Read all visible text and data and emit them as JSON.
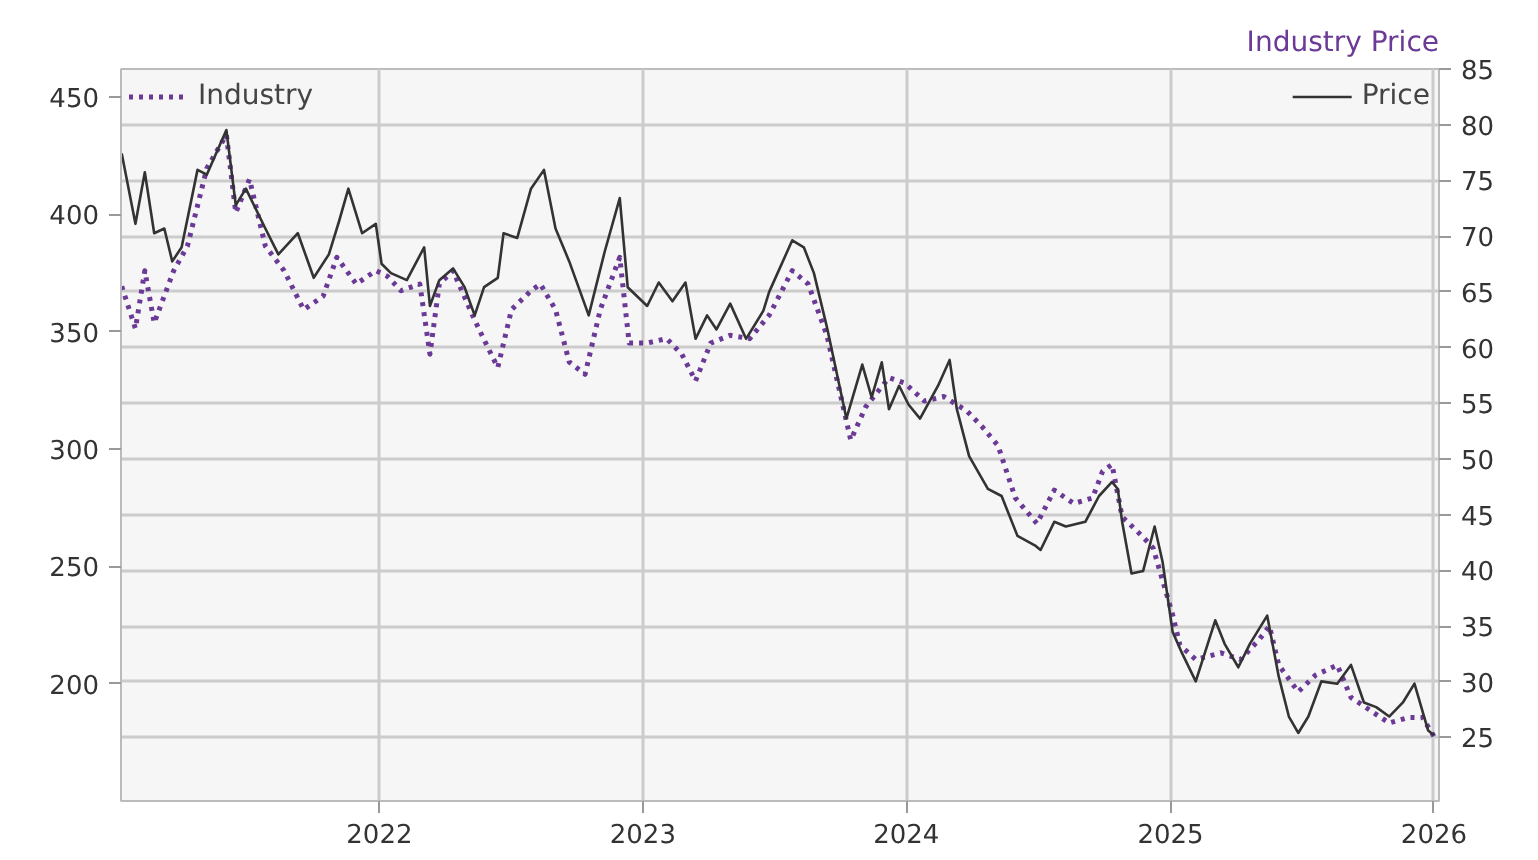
{
  "chart_data": {
    "type": "line",
    "y2label": "Industry Price",
    "legend": "top",
    "grid": true,
    "xlim": [
      "2021-01-08",
      "2026-01-08"
    ],
    "xticks": [
      {
        "value": "2022-01-01",
        "label": "2022"
      },
      {
        "value": "2023-01-01",
        "label": "2023"
      },
      {
        "value": "2024-01-01",
        "label": "2024"
      },
      {
        "value": "2025-01-01",
        "label": "2025"
      },
      {
        "value": "2026-01-01",
        "label": "2026"
      }
    ],
    "ylim": [
      150,
      462
    ],
    "yticks": [
      200,
      250,
      300,
      350,
      400,
      450
    ],
    "y2lim": [
      19.3,
      85
    ],
    "y2ticks": [
      25,
      30,
      35,
      40,
      45,
      50,
      55,
      60,
      65,
      70,
      75,
      80,
      85
    ],
    "series": [
      {
        "name": "Industry",
        "color": "#6b3a96",
        "axis": "y2",
        "line_style": "dotted",
        "x": [
          "2021-01-09",
          "2021-01-28",
          "2021-02-10",
          "2021-02-23",
          "2021-03-22",
          "2021-04-10",
          "2021-05-07",
          "2021-06-03",
          "2021-06-16",
          "2021-07-05",
          "2021-07-27",
          "2021-08-22",
          "2021-09-18",
          "2021-10-15",
          "2021-11-03",
          "2021-11-30",
          "2021-12-27",
          "2022-01-12",
          "2022-01-31",
          "2022-02-26",
          "2022-03-12",
          "2022-03-25",
          "2022-04-13",
          "2022-05-10",
          "2022-05-23",
          "2022-06-14",
          "2022-07-03",
          "2022-07-30",
          "2022-08-12",
          "2022-09-02",
          "2022-09-21",
          "2022-10-13",
          "2022-11-03",
          "2022-11-30",
          "2022-12-13",
          "2023-01-07",
          "2023-02-03",
          "2023-02-24",
          "2023-03-15",
          "2023-04-05",
          "2023-05-02",
          "2023-05-29",
          "2023-06-25",
          "2023-07-27",
          "2023-08-18",
          "2023-09-13",
          "2023-10-16",
          "2023-11-06",
          "2023-12-08",
          "2023-12-30",
          "2024-01-26",
          "2024-02-22",
          "2024-03-25",
          "2024-04-15",
          "2024-05-07",
          "2024-05-31",
          "2024-06-30",
          "2024-07-24",
          "2024-08-20",
          "2024-09-15",
          "2024-09-29",
          "2024-10-12",
          "2024-10-26",
          "2024-11-24",
          "2024-12-08",
          "2025-01-04",
          "2025-01-14",
          "2025-02-05",
          "2025-03-12",
          "2025-04-08",
          "2025-05-04",
          "2025-05-18",
          "2025-05-31",
          "2025-06-27",
          "2025-07-21",
          "2025-08-20",
          "2025-09-08",
          "2025-10-10",
          "2025-10-31",
          "2025-11-27",
          "2025-12-16",
          "2026-01-01"
        ],
        "values": [
          65.5,
          61.7,
          66.9,
          62.2,
          66.9,
          69.1,
          76.1,
          79.1,
          72.1,
          75.1,
          69.1,
          66.9,
          63.4,
          64.6,
          68.1,
          65.7,
          66.9,
          66.4,
          65.1,
          65.7,
          59.4,
          65.7,
          66.9,
          62.9,
          61.1,
          58.2,
          63.4,
          65.1,
          65.7,
          63.4,
          58.7,
          57.6,
          63.4,
          68.1,
          60.4,
          60.4,
          60.8,
          59.4,
          57.0,
          60.4,
          61.1,
          60.8,
          62.9,
          66.9,
          65.7,
          61.1,
          51.7,
          54.7,
          57.3,
          56.8,
          55.2,
          55.6,
          54.3,
          52.9,
          51.2,
          46.5,
          44.2,
          47.2,
          46.0,
          46.5,
          48.9,
          49.5,
          44.8,
          43.0,
          42.0,
          36.0,
          33.3,
          32.0,
          32.6,
          32.0,
          33.8,
          35.0,
          31.5,
          29.1,
          30.6,
          31.5,
          28.6,
          27.2,
          26.3,
          26.8,
          26.8,
          25.1
        ]
      },
      {
        "name": "Price",
        "color": "#333333",
        "line_style": "solid",
        "x": [
          "2021-01-09",
          "2021-01-28",
          "2021-02-10",
          "2021-02-23",
          "2021-03-09",
          "2021-03-20",
          "2021-04-02",
          "2021-04-24",
          "2021-05-07",
          "2021-06-03",
          "2021-06-16",
          "2021-06-30",
          "2021-07-27",
          "2021-08-14",
          "2021-09-10",
          "2021-10-02",
          "2021-10-23",
          "2021-11-06",
          "2021-11-19",
          "2021-12-08",
          "2021-12-27",
          "2022-01-04",
          "2022-01-17",
          "2022-02-08",
          "2022-03-04",
          "2022-03-12",
          "2022-03-25",
          "2022-04-13",
          "2022-04-29",
          "2022-05-13",
          "2022-05-26",
          "2022-06-14",
          "2022-06-22",
          "2022-07-11",
          "2022-07-30",
          "2022-08-17",
          "2022-09-02",
          "2022-09-21",
          "2022-10-18",
          "2022-11-09",
          "2022-11-30",
          "2022-12-11",
          "2023-01-07",
          "2023-01-23",
          "2023-02-11",
          "2023-03-01",
          "2023-03-15",
          "2023-03-31",
          "2023-04-13",
          "2023-05-02",
          "2023-05-24",
          "2023-06-17",
          "2023-06-25",
          "2023-07-27",
          "2023-08-12",
          "2023-08-26",
          "2023-09-13",
          "2023-10-10",
          "2023-11-01",
          "2023-11-14",
          "2023-11-28",
          "2023-12-08",
          "2023-12-22",
          "2024-01-04",
          "2024-01-20",
          "2024-02-14",
          "2024-03-01",
          "2024-03-11",
          "2024-03-28",
          "2024-04-23",
          "2024-05-12",
          "2024-06-03",
          "2024-06-27",
          "2024-07-05",
          "2024-07-24",
          "2024-08-09",
          "2024-09-05",
          "2024-09-24",
          "2024-10-12",
          "2024-10-20",
          "2024-10-26",
          "2024-11-08",
          "2024-11-24",
          "2024-12-10",
          "2024-12-21",
          "2025-01-04",
          "2025-01-17",
          "2025-02-05",
          "2025-03-04",
          "2025-03-17",
          "2025-04-05",
          "2025-04-21",
          "2025-05-15",
          "2025-05-31",
          "2025-06-14",
          "2025-06-27",
          "2025-07-11",
          "2025-07-29",
          "2025-08-20",
          "2025-09-08",
          "2025-09-26",
          "2025-10-13",
          "2025-10-31",
          "2025-11-19",
          "2025-12-05",
          "2025-12-24",
          "2026-01-01"
        ],
        "values": [
          426,
          396,
          418,
          392,
          394,
          380,
          386,
          419,
          417,
          436,
          404,
          411,
          394,
          383,
          392,
          373,
          383,
          397,
          411,
          392,
          396,
          379,
          375,
          372,
          386,
          361,
          372,
          377,
          369,
          357,
          369,
          373,
          392,
          390,
          411,
          419,
          394,
          380,
          357,
          384,
          407,
          369,
          361,
          371,
          363,
          371,
          347,
          357,
          351,
          362,
          347,
          359,
          367,
          389,
          386,
          375,
          352,
          313,
          336,
          322,
          337,
          317,
          327,
          319,
          313,
          327,
          338,
          317,
          297,
          283,
          280,
          263,
          259,
          257,
          269,
          267,
          269,
          280,
          286,
          283,
          269,
          247,
          248,
          267,
          252,
          222,
          213,
          201,
          227,
          217,
          207,
          217,
          229,
          203,
          186,
          179,
          186,
          201,
          200,
          208,
          192,
          190,
          186,
          192,
          200,
          180,
          178
        ]
      }
    ]
  }
}
